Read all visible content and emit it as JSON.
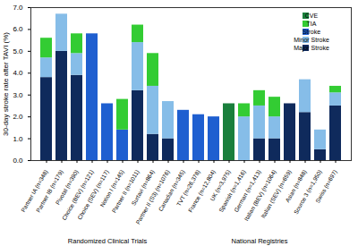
{
  "chart_data": {
    "type": "bar",
    "stacked": true,
    "y_label": "30-day stroke rate after TAVI (%)",
    "categories": [
      "Partner IA (n=348)",
      "Partner IB (n=179)",
      "Pivotal (n=390)",
      "Choice (BEV) (n=121)",
      "Choice (SEV) (n=117)",
      "Notion I (n=145)",
      "Partner II (n=1011)",
      "Surtavi (n=864)",
      "Partner II (S3) (n=1076)",
      "Canadian (n=345)",
      "TVT (n=26,378)",
      "France (n=12,804)",
      "UK (n=3,975)",
      "Spanish (n=1,416)",
      "German (n=1,413)",
      "Italian (BEV) (n=1064)",
      "Italian (SEV) (n=659)",
      "Asian (n=848)",
      "Source 3 (n=1,950)",
      "Swiss (n=697)"
    ],
    "series": [
      {
        "name": "Major Stroke",
        "color": "#0f2a5c",
        "values": [
          3.8,
          5.0,
          3.9,
          null,
          null,
          null,
          3.2,
          1.2,
          1.0,
          null,
          null,
          null,
          null,
          null,
          1.0,
          1.0,
          2.6,
          2.2,
          0.5,
          2.5
        ]
      },
      {
        "name": "Minor Stroke",
        "color": "#86bde8",
        "values": [
          0.9,
          1.7,
          1.0,
          null,
          null,
          null,
          2.2,
          2.2,
          1.7,
          null,
          null,
          null,
          null,
          2.0,
          1.5,
          1.0,
          null,
          1.5,
          0.9,
          0.6
        ]
      },
      {
        "name": "Stroke",
        "color": "#1f5fd0",
        "values": [
          null,
          null,
          null,
          5.8,
          2.6,
          1.4,
          null,
          null,
          null,
          2.3,
          2.1,
          2.0,
          null,
          null,
          null,
          null,
          null,
          null,
          null,
          null
        ]
      },
      {
        "name": "TIA",
        "color": "#33cc33",
        "values": [
          0.9,
          null,
          0.9,
          null,
          null,
          1.4,
          0.8,
          1.5,
          null,
          null,
          null,
          null,
          null,
          0.6,
          0.7,
          0.9,
          null,
          null,
          null,
          0.3
        ]
      },
      {
        "name": "CVE",
        "color": "#1a7f3c",
        "values": [
          null,
          null,
          null,
          null,
          null,
          null,
          null,
          null,
          null,
          null,
          null,
          null,
          2.6,
          null,
          null,
          null,
          null,
          null,
          null,
          null
        ]
      }
    ],
    "groups": [
      {
        "label": "Randomized Clinical Trials",
        "count": 9
      },
      {
        "label": "National Registries",
        "count": 11
      }
    ],
    "ylim": [
      0,
      7
    ],
    "yticks": [
      0,
      1,
      2,
      3,
      4,
      5,
      6,
      7
    ],
    "grid": false,
    "legend": "top-right"
  }
}
